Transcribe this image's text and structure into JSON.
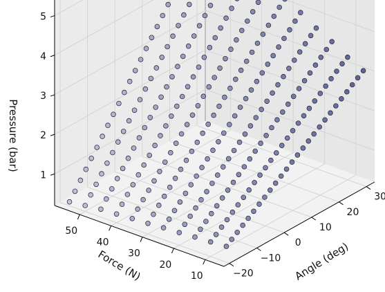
{
  "chart_data": {
    "type": "scatter",
    "title": "",
    "xlabel": "Angle (deg)",
    "ylabel": "Force (N)",
    "zlabel": "Pressure (bar)",
    "xlim": [
      -22,
      33
    ],
    "ylim": [
      4,
      58
    ],
    "zlim": [
      0.2,
      5.5
    ],
    "x_ticks": [
      "−20",
      "−10",
      "0",
      "10",
      "20",
      "30"
    ],
    "y_ticks": [
      "10",
      "20",
      "30",
      "40",
      "50"
    ],
    "z_ticks": [
      "1",
      "2",
      "3",
      "4",
      "5"
    ],
    "grid": true,
    "legend": "none",
    "color": "#8f93b8",
    "near_color": "#5a6090",
    "edge_color": "#2b2f45",
    "series": [
      {
        "force": 55,
        "angle": [
          -20,
          -18,
          -16,
          -14,
          -12,
          -10,
          -8,
          -6,
          -4,
          -2,
          0,
          2,
          4,
          6,
          8,
          10,
          12,
          14,
          16,
          18,
          20,
          22,
          24,
          26,
          28,
          30
        ],
        "pressure": [
          0.3,
          0.49,
          0.69,
          0.89,
          1.09,
          1.29,
          1.49,
          1.69,
          1.89,
          2.09,
          2.29,
          2.49,
          2.69,
          2.89,
          3.09,
          3.29,
          3.49,
          3.69,
          3.89,
          4.09,
          4.29,
          4.49,
          4.69,
          4.89,
          5.09,
          5.2
        ]
      },
      {
        "force": 50,
        "angle": [
          -20,
          -18,
          -16,
          -14,
          -12,
          -10,
          -8,
          -6,
          -4,
          -2,
          0,
          2,
          4,
          6,
          8,
          10,
          12,
          14,
          16,
          18,
          20,
          22,
          24,
          26,
          28,
          30
        ],
        "pressure": [
          0.35,
          0.54,
          0.73,
          0.92,
          1.11,
          1.3,
          1.49,
          1.68,
          1.87,
          2.06,
          2.25,
          2.44,
          2.63,
          2.82,
          3.01,
          3.2,
          3.39,
          3.58,
          3.77,
          3.96,
          4.15,
          4.34,
          4.53,
          4.72,
          4.91,
          5.0
        ]
      },
      {
        "force": 45,
        "angle": [
          -20,
          -18,
          -16,
          -14,
          -12,
          -10,
          -8,
          -6,
          -4,
          -2,
          0,
          2,
          4,
          6,
          8,
          10,
          12,
          14,
          16,
          18,
          20,
          22,
          24,
          26,
          28,
          30
        ],
        "pressure": [
          0.4,
          0.58,
          0.76,
          0.94,
          1.12,
          1.3,
          1.48,
          1.66,
          1.84,
          2.02,
          2.2,
          2.38,
          2.56,
          2.74,
          2.92,
          3.1,
          3.28,
          3.46,
          3.64,
          3.82,
          4.0,
          4.18,
          4.36,
          4.54,
          4.72,
          4.85
        ]
      },
      {
        "force": 40,
        "angle": [
          -20,
          -18,
          -16,
          -14,
          -12,
          -10,
          -8,
          -6,
          -4,
          -2,
          0,
          2,
          4,
          6,
          8,
          10,
          12,
          14,
          16,
          18,
          20,
          22,
          24,
          26,
          28,
          30
        ],
        "pressure": [
          0.42,
          0.59,
          0.76,
          0.93,
          1.1,
          1.27,
          1.44,
          1.61,
          1.78,
          1.95,
          2.12,
          2.29,
          2.46,
          2.63,
          2.8,
          2.97,
          3.14,
          3.31,
          3.48,
          3.65,
          3.82,
          3.99,
          4.16,
          4.33,
          4.5,
          4.65
        ]
      },
      {
        "force": 35,
        "angle": [
          -20,
          -18,
          -16,
          -14,
          -12,
          -10,
          -8,
          -6,
          -4,
          -2,
          0,
          2,
          4,
          6,
          8,
          10,
          12,
          14,
          16,
          18,
          20,
          22,
          24,
          26,
          28,
          30
        ],
        "pressure": [
          0.45,
          0.61,
          0.77,
          0.93,
          1.09,
          1.25,
          1.41,
          1.57,
          1.73,
          1.89,
          2.05,
          2.21,
          2.37,
          2.53,
          2.69,
          2.85,
          3.01,
          3.17,
          3.33,
          3.49,
          3.65,
          3.81,
          3.97,
          4.13,
          4.29,
          4.45
        ]
      },
      {
        "force": 30,
        "angle": [
          -20,
          -18,
          -16,
          -14,
          -12,
          -10,
          -8,
          -6,
          -4,
          -2,
          0,
          2,
          4,
          6,
          8,
          10,
          12,
          14,
          16,
          18,
          20,
          22,
          24,
          26,
          28,
          30
        ],
        "pressure": [
          0.47,
          0.62,
          0.77,
          0.92,
          1.07,
          1.22,
          1.37,
          1.52,
          1.67,
          1.82,
          1.97,
          2.12,
          2.27,
          2.42,
          2.57,
          2.72,
          2.87,
          3.02,
          3.17,
          3.32,
          3.47,
          3.62,
          3.77,
          3.92,
          4.07,
          4.2
        ]
      },
      {
        "force": 25,
        "angle": [
          -20,
          -18,
          -16,
          -14,
          -12,
          -10,
          -8,
          -6,
          -4,
          -2,
          0,
          2,
          4,
          6,
          8,
          10,
          12,
          14,
          16,
          18,
          20,
          22,
          24,
          26,
          28,
          30
        ],
        "pressure": [
          0.5,
          0.64,
          0.78,
          0.92,
          1.06,
          1.2,
          1.34,
          1.48,
          1.62,
          1.76,
          1.9,
          2.04,
          2.18,
          2.32,
          2.46,
          2.6,
          2.74,
          2.88,
          3.02,
          3.16,
          3.3,
          3.44,
          3.58,
          3.72,
          3.86,
          4.0
        ]
      },
      {
        "force": 20,
        "angle": [
          -20,
          -18,
          -16,
          -14,
          -12,
          -10,
          -8,
          -6,
          -4,
          -2,
          0,
          2,
          4,
          6,
          8,
          10,
          12,
          14,
          16,
          18,
          20,
          22,
          24,
          26,
          28,
          30
        ],
        "pressure": [
          0.52,
          0.65,
          0.78,
          0.91,
          1.04,
          1.17,
          1.3,
          1.43,
          1.56,
          1.69,
          1.82,
          1.95,
          2.08,
          2.21,
          2.34,
          2.47,
          2.6,
          2.73,
          2.86,
          2.99,
          3.12,
          3.25,
          3.38,
          3.51,
          3.64,
          3.75
        ]
      },
      {
        "force": 15,
        "angle": [
          -20,
          -18,
          -16,
          -14,
          -12,
          -10,
          -8,
          -6,
          -4,
          -2,
          0,
          2,
          4,
          6,
          8,
          10,
          12,
          14,
          16,
          18,
          20,
          22,
          24,
          26,
          28,
          30
        ],
        "pressure": [
          0.55,
          0.67,
          0.79,
          0.91,
          1.03,
          1.15,
          1.27,
          1.39,
          1.51,
          1.63,
          1.75,
          1.87,
          1.99,
          2.11,
          2.23,
          2.35,
          2.47,
          2.59,
          2.71,
          2.83,
          2.95,
          3.07,
          3.19,
          3.31,
          3.43,
          3.55
        ]
      },
      {
        "force": 10,
        "angle": [
          -20,
          -18,
          -16,
          -14,
          -12,
          -10,
          -8,
          -6,
          -4,
          -2,
          0,
          2,
          4,
          6,
          8,
          10,
          12,
          14,
          16,
          18,
          20,
          22,
          24,
          26,
          28,
          30
        ],
        "pressure": [
          0.57,
          0.68,
          0.79,
          0.9,
          1.01,
          1.12,
          1.23,
          1.34,
          1.45,
          1.56,
          1.67,
          1.78,
          1.89,
          2.0,
          2.11,
          2.22,
          2.33,
          2.44,
          2.55,
          2.66,
          2.77,
          2.88,
          2.99,
          3.1,
          3.21,
          3.3
        ]
      },
      {
        "force": 5,
        "angle": [
          -20,
          -18,
          -16,
          -14,
          -12,
          -10,
          -8,
          -6,
          -4,
          -2,
          0,
          2,
          4,
          6,
          8,
          10,
          12,
          14,
          16,
          18,
          20,
          22,
          24,
          26,
          28,
          30
        ],
        "pressure": [
          0.6,
          0.7,
          0.8,
          0.9,
          1.0,
          1.1,
          1.2,
          1.3,
          1.4,
          1.5,
          1.6,
          1.7,
          1.8,
          1.9,
          2.0,
          2.1,
          2.2,
          2.3,
          2.4,
          2.5,
          2.6,
          2.7,
          2.8,
          2.9,
          3.0,
          3.1
        ]
      }
    ]
  }
}
